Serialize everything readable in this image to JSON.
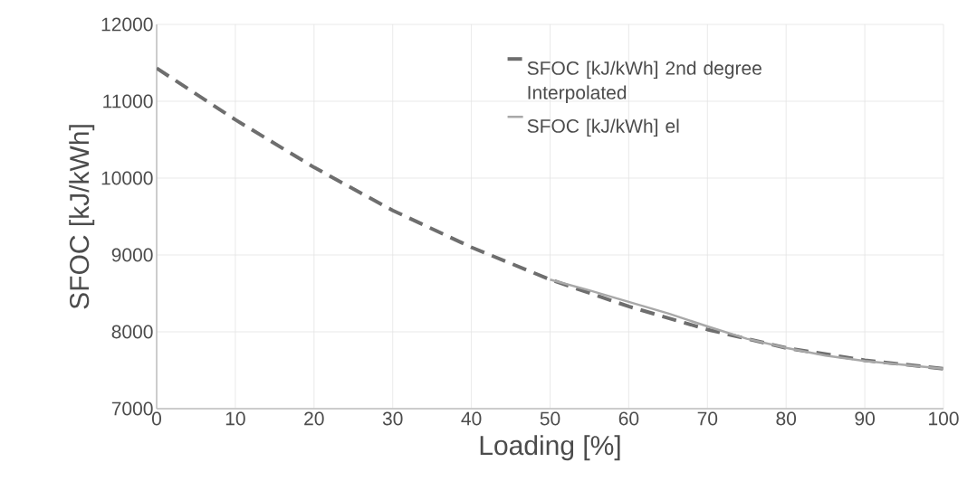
{
  "chart_data": {
    "type": "line",
    "xlabel": "Loading [%]",
    "ylabel": "SFOC [kJ/kWh]",
    "xlim": [
      0,
      100
    ],
    "xticks": [
      0,
      10,
      20,
      30,
      40,
      50,
      60,
      70,
      80,
      90,
      100
    ],
    "ylim": [
      7000,
      12000
    ],
    "yticks": [
      7000,
      8000,
      9000,
      10000,
      11000,
      12000
    ],
    "grid": true,
    "legend": "top right",
    "marker": "none",
    "series": [
      {
        "name": "SFOC [kJ/kWh] 2nd degree Interpolated",
        "color": "#6e6e6e",
        "line_style": "dashed",
        "x": [
          0,
          10,
          20,
          30,
          40,
          50,
          60,
          70,
          80,
          90,
          100
        ],
        "values": [
          11430,
          10760,
          10140,
          9580,
          9100,
          8680,
          8330,
          8030,
          7790,
          7630,
          7520
        ]
      },
      {
        "name": "SFOC [kJ/kWh] el",
        "color": "#a8a8a8",
        "line_style": "solid",
        "x": [
          50,
          55,
          60,
          65,
          70,
          75,
          80,
          85,
          90,
          95,
          100
        ],
        "values": [
          8680,
          8540,
          8390,
          8240,
          8070,
          7910,
          7790,
          7690,
          7620,
          7570,
          7520
        ]
      }
    ]
  }
}
